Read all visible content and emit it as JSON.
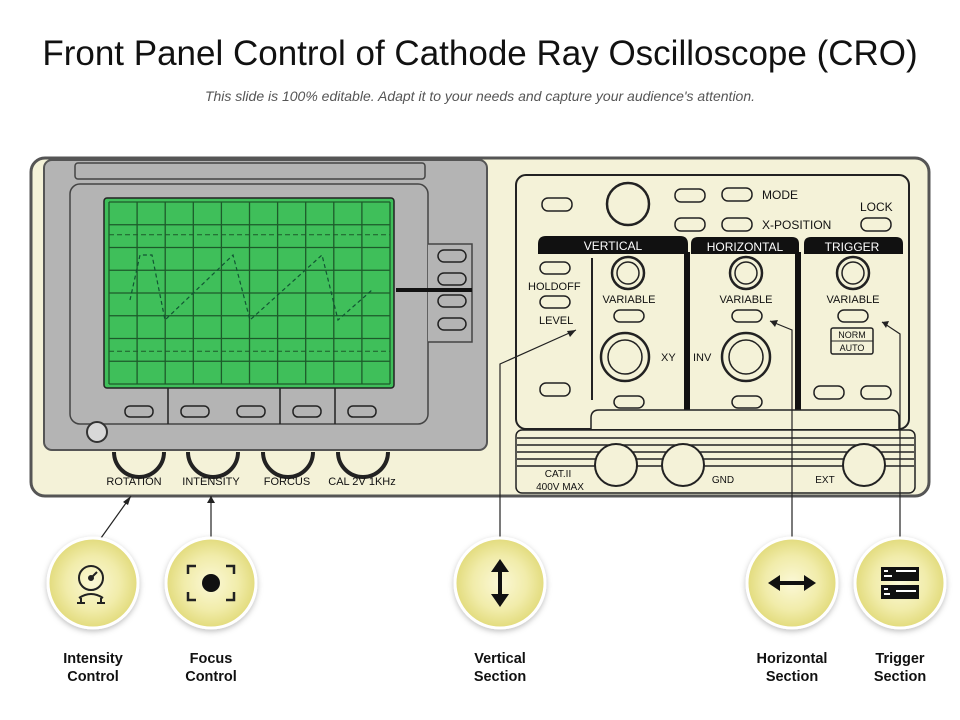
{
  "title": "Front Panel Control of Cathode Ray Oscilloscope (CRO)",
  "subtitle": "This slide is 100% editable. Adapt it to your needs and capture your audience's attention.",
  "panel": {
    "knob_labels": [
      "ROTATION",
      "INTENSITY",
      "FORCUS",
      "CAL 2V 1KHz"
    ],
    "mode": "MODE",
    "x_position": "X-POSITION",
    "lock": "LOCK",
    "vertical_header": "VERTICAL",
    "horizontal_header": "HORIZONTAL",
    "trigger_header": "TRIGGER",
    "holdoff": "HOLDOFF",
    "level": "LEVEL",
    "variable": "VARIABLE",
    "xy": "XY",
    "inv": "INV",
    "norm": "NORM",
    "auto": "AUTO",
    "cat_line1": "CAT.II",
    "cat_line2": "400V MAX",
    "gnd": "GND",
    "ext": "EXT"
  },
  "callouts": [
    {
      "line1": "Intensity",
      "line2": "Control",
      "icon": "gauge-icon"
    },
    {
      "line1": "Focus",
      "line2": "Control",
      "icon": "focus-icon"
    },
    {
      "line1": "Vertical",
      "line2": "Section",
      "icon": "vertical-arrow-icon"
    },
    {
      "line1": "Horizontal",
      "line2": "Section",
      "icon": "horizontal-arrow-icon"
    },
    {
      "line1": "Trigger",
      "line2": "Section",
      "icon": "trigger-icon"
    }
  ],
  "colors": {
    "panel_fill": "#f4f2d8",
    "screen_green": "#3fbf5a",
    "bezel_gray": "#b4b4b4",
    "callout_yellow": "#ece79a"
  }
}
